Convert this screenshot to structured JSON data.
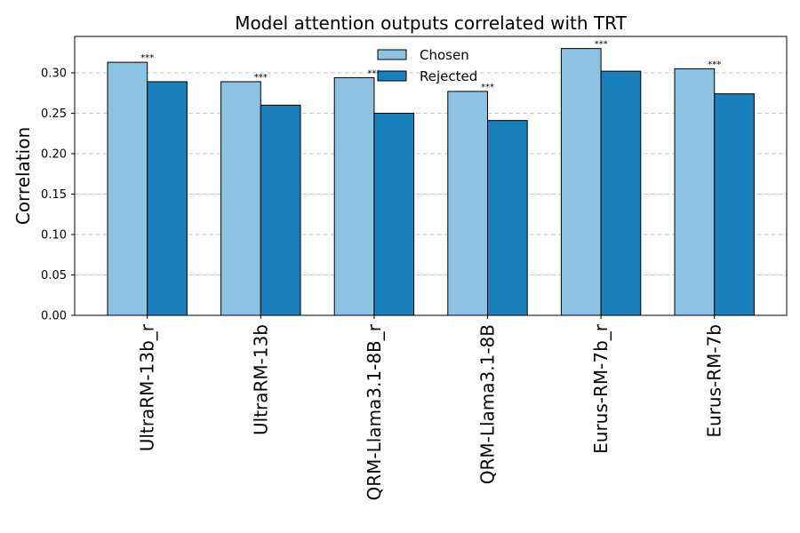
{
  "chart_data": {
    "type": "bar",
    "title": "Model attention outputs correlated with TRT",
    "xlabel": "",
    "ylabel": "Correlation",
    "ylim": [
      0,
      0.345
    ],
    "yticks": [
      0.0,
      0.05,
      0.1,
      0.15,
      0.2,
      0.25,
      0.3
    ],
    "grid": true,
    "legend_position": "top-center",
    "categories": [
      "UltraRM-13b_r",
      "UltraRM-13b",
      "QRM-Llama3.1-8B_r",
      "QRM-Llama3.1-8B",
      "Eurus-RM-7b_r",
      "Eurus-RM-7b"
    ],
    "series": [
      {
        "name": "Chosen",
        "color": "#8cc3e3",
        "values": [
          0.313,
          0.289,
          0.294,
          0.277,
          0.33,
          0.305
        ]
      },
      {
        "name": "Rejected",
        "color": "#1a80bb",
        "values": [
          0.289,
          0.26,
          0.25,
          0.241,
          0.302,
          0.274
        ]
      }
    ],
    "significance": [
      "***",
      "***",
      "***",
      "***",
      "***",
      "***"
    ]
  }
}
